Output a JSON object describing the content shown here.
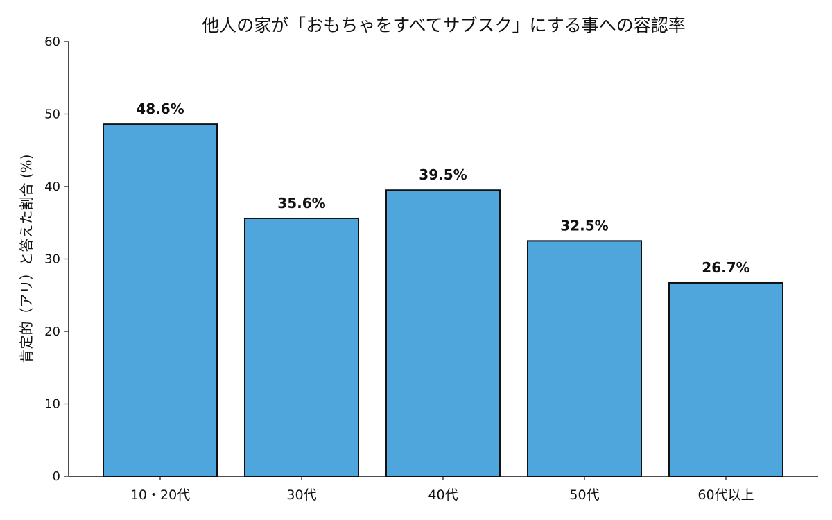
{
  "chart_data": {
    "type": "bar",
    "title": "他人の家が「おもちゃをすべてサブスク」にする事への容認率",
    "ylabel": "肯定的（アリ）と答えた割合 (%)",
    "xlabel": "",
    "categories": [
      "10・20代",
      "30代",
      "40代",
      "50代",
      "60代以上"
    ],
    "values": [
      48.6,
      35.6,
      39.5,
      32.5,
      26.7
    ],
    "value_labels": [
      "48.6%",
      "35.6%",
      "39.5%",
      "32.5%",
      "26.7%"
    ],
    "ylim": [
      0,
      60
    ],
    "yticks": [
      0,
      10,
      20,
      30,
      40,
      50,
      60
    ],
    "bar_color": "#4ea6dc",
    "grid": false,
    "legend": "none"
  }
}
